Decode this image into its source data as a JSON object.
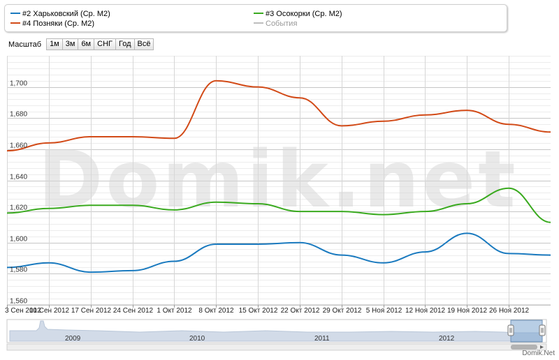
{
  "legend": [
    {
      "label": "#2 Харьковский (Ср. М2)",
      "color": "#1a7abf",
      "active": true
    },
    {
      "label": "#3 Осокорки (Ср. М2)",
      "color": "#3aaa1f",
      "active": true
    },
    {
      "label": "#4 Позняки (Ср. М2)",
      "color": "#d24a17",
      "active": true
    },
    {
      "label": "События",
      "color": "#9a9a9a",
      "active": false
    }
  ],
  "zoom": {
    "label": "Масштаб",
    "buttons": [
      "1м",
      "3м",
      "6м",
      "СНГ",
      "Год",
      "Всё"
    ]
  },
  "watermark": "Domik.net",
  "credit": "Domik.Net",
  "chart_data": {
    "type": "line",
    "ylim": [
      1560,
      1720
    ],
    "yticks": [
      1560,
      1580,
      1600,
      1620,
      1640,
      1660,
      1680,
      1700
    ],
    "ytick_labels": [
      "1,560",
      "1,580",
      "1,600",
      "1,620",
      "1,640",
      "1,660",
      "1,680",
      "1,700"
    ],
    "x_range": [
      "2012-09-03",
      "2012-12-03"
    ],
    "xtick_labels": [
      "3 Сен 2012",
      "10 Сен 2012",
      "17 Сен 2012",
      "24 Сен 2012",
      "1 Окт 2012",
      "8 Окт 2012",
      "15 Окт 2012",
      "22 Окт 2012",
      "29 Окт 2012",
      "5 Ноя 2012",
      "12 Ноя 2012",
      "19 Ноя 2012",
      "26 Ноя 2012"
    ],
    "grid": true,
    "legend_position": "top",
    "series": [
      {
        "name": "#2 Харьковский (Ср. М2)",
        "color": "#1a7abf",
        "points": [
          [
            "2012-09-03",
            1584
          ],
          [
            "2012-09-10",
            1587
          ],
          [
            "2012-09-17",
            1581
          ],
          [
            "2012-09-24",
            1582
          ],
          [
            "2012-10-01",
            1588
          ],
          [
            "2012-10-08",
            1599
          ],
          [
            "2012-10-15",
            1599
          ],
          [
            "2012-10-22",
            1600
          ],
          [
            "2012-10-29",
            1592
          ],
          [
            "2012-11-05",
            1587
          ],
          [
            "2012-11-12",
            1594
          ],
          [
            "2012-11-19",
            1606
          ],
          [
            "2012-11-26",
            1593
          ],
          [
            "2012-12-03",
            1592
          ]
        ]
      },
      {
        "name": "#3 Осокорки (Ср. М2)",
        "color": "#3aaa1f",
        "points": [
          [
            "2012-09-03",
            1619
          ],
          [
            "2012-09-10",
            1622
          ],
          [
            "2012-09-17",
            1624
          ],
          [
            "2012-09-24",
            1624
          ],
          [
            "2012-10-01",
            1621
          ],
          [
            "2012-10-08",
            1626
          ],
          [
            "2012-10-15",
            1625
          ],
          [
            "2012-10-22",
            1620
          ],
          [
            "2012-10-29",
            1620
          ],
          [
            "2012-11-05",
            1618
          ],
          [
            "2012-11-12",
            1620
          ],
          [
            "2012-11-19",
            1625
          ],
          [
            "2012-11-26",
            1635
          ],
          [
            "2012-12-03",
            1613
          ]
        ]
      },
      {
        "name": "#4 Позняки (Ср. М2)",
        "color": "#d24a17",
        "points": [
          [
            "2012-09-03",
            1659
          ],
          [
            "2012-09-10",
            1664
          ],
          [
            "2012-09-17",
            1668
          ],
          [
            "2012-09-24",
            1668
          ],
          [
            "2012-10-01",
            1667
          ],
          [
            "2012-10-08",
            1704
          ],
          [
            "2012-10-15",
            1700
          ],
          [
            "2012-10-22",
            1693
          ],
          [
            "2012-10-29",
            1675
          ],
          [
            "2012-11-05",
            1678
          ],
          [
            "2012-11-12",
            1682
          ],
          [
            "2012-11-19",
            1685
          ],
          [
            "2012-11-26",
            1676
          ],
          [
            "2012-12-03",
            1671
          ]
        ]
      }
    ],
    "navigator": {
      "years": [
        "2009",
        "2010",
        "2011",
        "2012"
      ]
    }
  }
}
